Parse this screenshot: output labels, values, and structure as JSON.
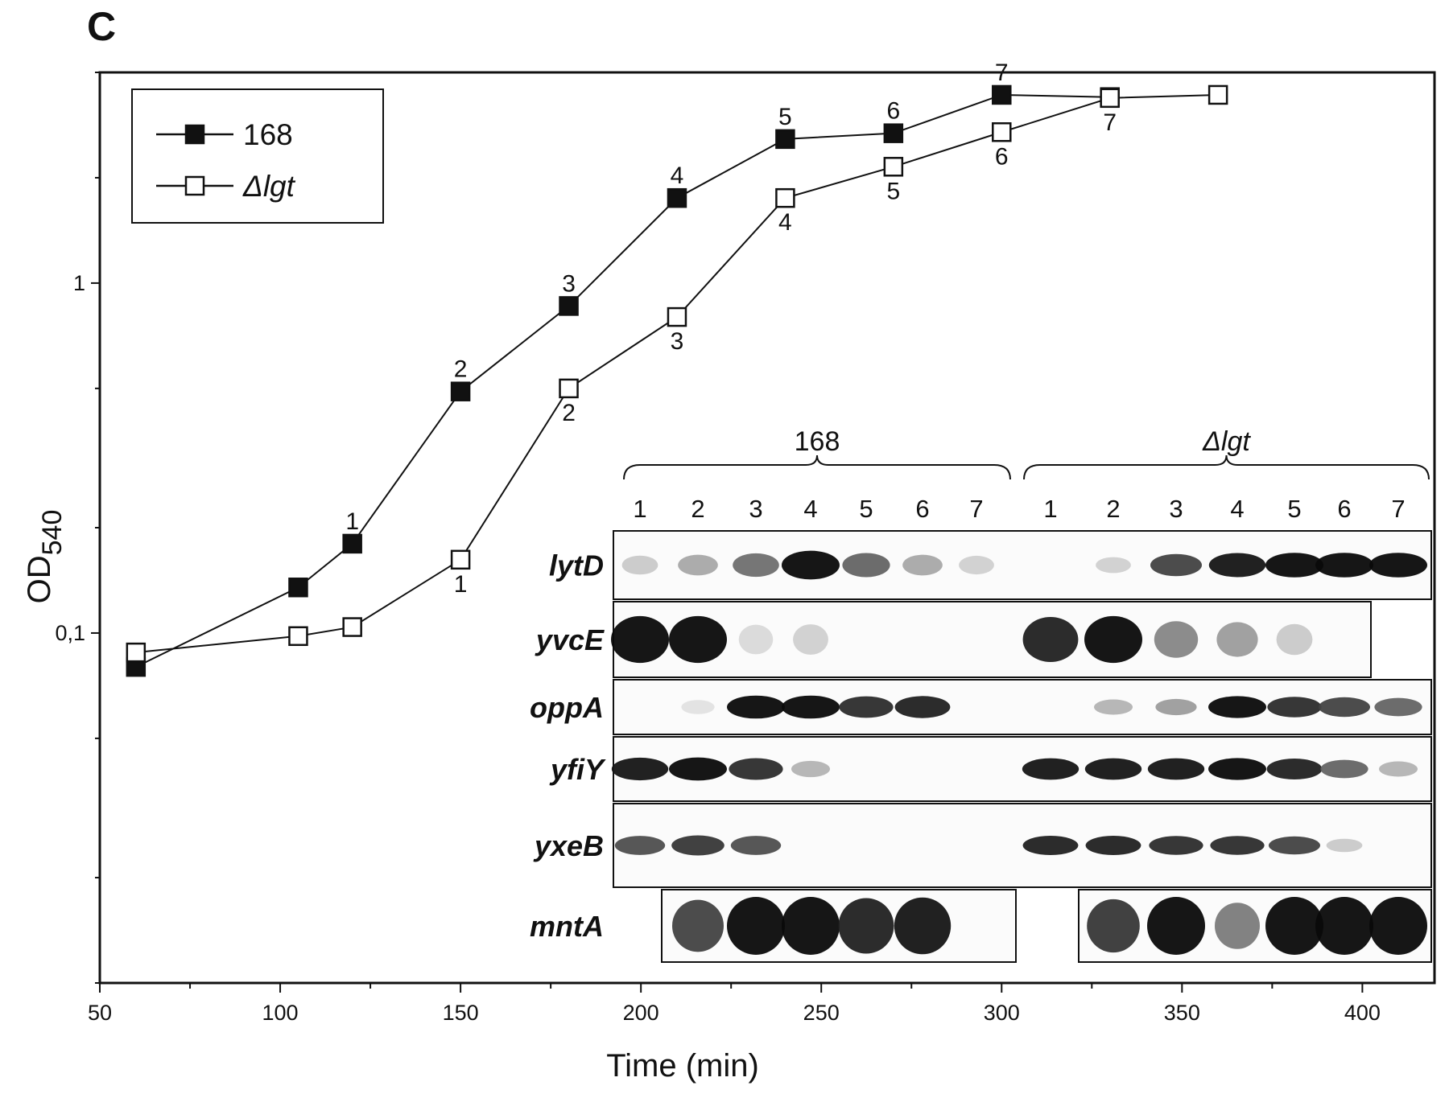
{
  "panel_letter": "C",
  "chart_data": {
    "type": "line",
    "xlabel": "Time (min)",
    "ylabel": "OD",
    "ylabel_subscript": "540",
    "xlim": [
      50,
      420
    ],
    "ylim": [
      0.01,
      4.0
    ],
    "y_scale": "log",
    "x_ticks": [
      "50",
      "100",
      "150",
      "200",
      "250",
      "300",
      "350",
      "400"
    ],
    "x_tick_values": [
      50,
      100,
      150,
      200,
      250,
      300,
      350,
      400
    ],
    "y_ticks": [
      "1",
      "0,1"
    ],
    "y_tick_values": [
      1,
      0.1
    ],
    "grid": false,
    "legend_position": "top-left",
    "series": [
      {
        "name": "168",
        "marker": "filled-square",
        "x": [
          60,
          105,
          120,
          150,
          180,
          210,
          240,
          270,
          300,
          330
        ],
        "y": [
          0.08,
          0.135,
          0.18,
          0.49,
          0.86,
          1.75,
          2.58,
          2.68,
          3.45,
          3.4
        ],
        "point_labels": [
          "",
          "",
          "1",
          "2",
          "3",
          "4",
          "5",
          "6",
          "7",
          ""
        ],
        "label_pos": "above"
      },
      {
        "name": "Δlgt",
        "marker": "open-square",
        "x": [
          60,
          105,
          120,
          150,
          180,
          210,
          240,
          270,
          300,
          330,
          360
        ],
        "y": [
          0.088,
          0.098,
          0.104,
          0.162,
          0.5,
          0.8,
          1.75,
          2.15,
          2.7,
          3.38,
          3.45
        ],
        "point_labels": [
          "",
          "",
          "",
          "1",
          "2",
          "3",
          "4",
          "5",
          "6",
          "7",
          ""
        ],
        "label_pos": "below"
      }
    ]
  },
  "inset": {
    "groups": [
      {
        "label": "168",
        "lanes": [
          "1",
          "2",
          "3",
          "4",
          "5",
          "6",
          "7"
        ]
      },
      {
        "label": "Δlgt",
        "lanes": [
          "1",
          "2",
          "3",
          "4",
          "5",
          "6",
          "7"
        ]
      }
    ],
    "genes": [
      "lytD",
      "yvcE",
      "oppA",
      "yfiY",
      "yxeB",
      "mntA"
    ],
    "band_intensity": {
      "lytD": [
        [
          0.15,
          0.3,
          0.55,
          1.0,
          0.6,
          0.3,
          0.12
        ],
        [
          0.0,
          0.12,
          0.75,
          0.95,
          1.0,
          1.0,
          1.0
        ]
      ],
      "yvcE": [
        [
          1.0,
          1.0,
          0.08,
          0.12,
          0.0,
          0.0,
          0.0
        ],
        [
          0.9,
          1.0,
          0.45,
          0.35,
          0.15,
          0.0,
          0.0
        ]
      ],
      "oppA": [
        [
          0.0,
          0.04,
          1.0,
          1.0,
          0.85,
          0.9,
          0.0
        ],
        [
          0.0,
          0.25,
          0.35,
          1.0,
          0.85,
          0.75,
          0.6
        ]
      ],
      "yfiY": [
        [
          0.95,
          1.0,
          0.85,
          0.25,
          0.0,
          0.0,
          0.0
        ],
        [
          0.95,
          0.95,
          0.95,
          1.0,
          0.9,
          0.6,
          0.25
        ]
      ],
      "yxeB": [
        [
          0.7,
          0.8,
          0.7,
          0.0,
          0.0,
          0.0,
          0.0
        ],
        [
          0.9,
          0.9,
          0.85,
          0.85,
          0.75,
          0.15,
          0.0
        ]
      ],
      "mntA": [
        [
          0.0,
          0.75,
          1.0,
          1.0,
          0.9,
          0.95,
          0.0
        ],
        [
          0.0,
          0.8,
          1.0,
          0.5,
          1.0,
          1.0,
          1.0
        ]
      ]
    }
  }
}
